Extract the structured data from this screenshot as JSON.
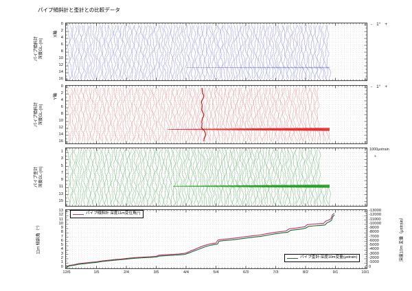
{
  "title": "パイプ傾斜計と歪計との比較データ",
  "x_axis": {
    "tick_labels": [
      "12/6",
      "1/5",
      "2/4",
      "3/5",
      "4/4",
      "5/4",
      "6/3",
      "7/3",
      "8/2",
      "9/1",
      "10/1"
    ]
  },
  "panel1": {
    "label_line1": "パイプ傾斜計",
    "label_line2": "深度GL-(m)",
    "axis_tag": "X軸",
    "y_tick_labels": [
      "0",
      "2",
      "4",
      "6",
      "8",
      "10",
      "12",
      "14",
      "16"
    ],
    "scale": {
      "minus": "-",
      "value": "1°",
      "plus": "+"
    }
  },
  "panel2": {
    "label_line1": "パイプ傾斜計",
    "label_line2": "深度GL-(m)",
    "axis_tag": "Y軸",
    "y_tick_labels": [
      "0",
      "2",
      "4",
      "6",
      "8",
      "10",
      "12",
      "14",
      "16"
    ],
    "scale": {
      "minus": "-",
      "value": "1°",
      "plus": "+"
    }
  },
  "panel3": {
    "label_line1": "パイプ歪計",
    "label_line2": "深度GL-(m)",
    "y_tick_labels": [
      "1",
      "3",
      "5",
      "7",
      "9",
      "11",
      "13",
      "15"
    ],
    "scale_label": "1000μstrain",
    "scale_sub": "+"
  },
  "panel4": {
    "left_label": "11m 傾斜角（°）",
    "right_label": "深度10m 変量（μstrain）",
    "left_tick_labels": [
      "13",
      "12",
      "11",
      "10",
      "9",
      "8",
      "7",
      "6",
      "5",
      "4",
      "3",
      "2",
      "1",
      "0"
    ],
    "right_tick_labels": [
      "-13000",
      "-12000",
      "-11000",
      "-10000",
      "-9000",
      "-8000",
      "-7000",
      "-6000",
      "-5000",
      "-4000",
      "-3000",
      "-2000",
      "-1000",
      "0"
    ],
    "legend_tilt": "パイプ傾斜計 深度11m変位角(°)",
    "legend_strain": "パイプ歪計:深度10m変量(μstrain)"
  },
  "colors": {
    "trace_blue": "#7b80d8",
    "band_blue": "#4348b8",
    "trace_red": "#e08282",
    "band_red": "#e00000",
    "trace_green": "#55a85c",
    "band_green": "#009200",
    "line_magenta": "#c22b6e",
    "line_green": "#156b2a",
    "grid": "#c6c6c6",
    "frame": "#444444",
    "tick": "#333333"
  },
  "chart_data": [
    {
      "type": "profile-fan",
      "name": "pipe-inclinometer-x-axis",
      "y_axis_label": "パイプ傾斜計 深度GL-(m) X軸",
      "depth_range_m": [
        0,
        16
      ],
      "depth_tick_labels": [
        "0",
        "2",
        "4",
        "6",
        "8",
        "10",
        "12",
        "14",
        "16"
      ],
      "scale_annotation": "- 1° +",
      "profile_color": "blue",
      "n_profiles": 115,
      "date_span": [
        "12/6",
        "8/25"
      ],
      "displacement_concentration_depth_m": 12.5
    },
    {
      "type": "profile-fan",
      "name": "pipe-inclinometer-y-axis",
      "y_axis_label": "パイプ傾斜計 深度GL-(m) Y軸",
      "depth_range_m": [
        0,
        16
      ],
      "depth_tick_labels": [
        "0",
        "2",
        "4",
        "6",
        "8",
        "10",
        "12",
        "14",
        "16"
      ],
      "scale_annotation": "- 1° +",
      "profile_color": "red",
      "n_profiles": 115,
      "date_span": [
        "12/6",
        "8/25"
      ],
      "displacement_concentration_depth_m": 12.3,
      "highlighted_profile_position": 0.52
    },
    {
      "type": "profile-fan",
      "name": "pipe-strain-gauge",
      "y_axis_label": "パイプ歪計 深度GL-(m)",
      "depth_range_m": [
        0,
        16
      ],
      "depth_tick_labels": [
        "1",
        "3",
        "5",
        "7",
        "9",
        "11",
        "13",
        "15"
      ],
      "scale_annotation": "1000μstrain",
      "profile_color": "green",
      "n_profiles": 115,
      "date_span": [
        "12/6",
        "8/25"
      ],
      "displacement_concentration_depth_m": 10.6
    },
    {
      "type": "line",
      "name": "time-series-comparison",
      "x_tick_labels": [
        "12/6",
        "1/5",
        "2/4",
        "3/5",
        "4/4",
        "5/4",
        "6/3",
        "7/3",
        "8/2",
        "9/1",
        "10/1"
      ],
      "ylabel_left": "11m 傾斜角（°）",
      "ylabel_right": "深度10m 変量（μstrain）",
      "ylim_left": [
        0,
        13
      ],
      "ylim_right": [
        0,
        -13000
      ],
      "grid": true,
      "series": [
        {
          "name": "パイプ傾斜計 深度11m変位角(°)",
          "axis": "left",
          "color": "#c22b6e",
          "points": [
            [
              0,
              0.2
            ],
            [
              0.1,
              0.45
            ],
            [
              0.25,
              0.6
            ],
            [
              0.4,
              0.85
            ],
            [
              0.6,
              1.0
            ],
            [
              0.8,
              1.15
            ],
            [
              1.0,
              1.3
            ],
            [
              1.2,
              1.5
            ],
            [
              1.4,
              1.65
            ],
            [
              1.6,
              1.8
            ],
            [
              1.8,
              1.9
            ],
            [
              2.0,
              2.05
            ],
            [
              2.2,
              2.2
            ],
            [
              2.4,
              2.3
            ],
            [
              2.6,
              2.4
            ],
            [
              2.8,
              2.45
            ],
            [
              3.0,
              2.55
            ],
            [
              3.08,
              2.8
            ],
            [
              3.25,
              2.9
            ],
            [
              3.5,
              3.0
            ],
            [
              3.75,
              3.1
            ],
            [
              3.95,
              3.25
            ],
            [
              4.05,
              3.5
            ],
            [
              4.15,
              3.8
            ],
            [
              4.3,
              4.2
            ],
            [
              4.45,
              4.65
            ],
            [
              4.6,
              5.05
            ],
            [
              4.75,
              5.35
            ],
            [
              4.9,
              5.55
            ],
            [
              5.0,
              5.65
            ],
            [
              5.07,
              6.35
            ],
            [
              5.2,
              6.5
            ],
            [
              5.45,
              6.65
            ],
            [
              5.7,
              6.85
            ],
            [
              5.95,
              7.1
            ],
            [
              6.2,
              7.3
            ],
            [
              6.45,
              7.5
            ],
            [
              6.7,
              7.8
            ],
            [
              6.95,
              8.1
            ],
            [
              7.15,
              8.3
            ],
            [
              7.35,
              8.45
            ],
            [
              7.45,
              8.95
            ],
            [
              7.65,
              9.1
            ],
            [
              7.85,
              9.3
            ],
            [
              7.98,
              9.45
            ],
            [
              8.05,
              9.9
            ],
            [
              8.25,
              10.05
            ],
            [
              8.45,
              10.15
            ],
            [
              8.6,
              10.2
            ],
            [
              8.68,
              10.75
            ],
            [
              8.78,
              11.0
            ],
            [
              8.85,
              11.3
            ],
            [
              8.9,
              12.25
            ],
            [
              8.96,
              12.55
            ]
          ]
        },
        {
          "name": "パイプ歪計:深度10m変量(μstrain)",
          "axis": "right",
          "color": "#156b2a",
          "points": [
            [
              0,
              -100
            ],
            [
              0.1,
              -350
            ],
            [
              0.25,
              -500
            ],
            [
              0.4,
              -700
            ],
            [
              0.6,
              -850
            ],
            [
              0.8,
              -1000
            ],
            [
              1.0,
              -1150
            ],
            [
              1.2,
              -1350
            ],
            [
              1.4,
              -1500
            ],
            [
              1.6,
              -1650
            ],
            [
              1.8,
              -1750
            ],
            [
              2.0,
              -1900
            ],
            [
              2.2,
              -2050
            ],
            [
              2.4,
              -2150
            ],
            [
              2.6,
              -2250
            ],
            [
              2.8,
              -2300
            ],
            [
              3.0,
              -2400
            ],
            [
              3.1,
              -2600
            ],
            [
              3.3,
              -2700
            ],
            [
              3.55,
              -2800
            ],
            [
              3.8,
              -2900
            ],
            [
              3.98,
              -3050
            ],
            [
              4.08,
              -3300
            ],
            [
              4.2,
              -3600
            ],
            [
              4.35,
              -4000
            ],
            [
              4.5,
              -4400
            ],
            [
              4.65,
              -4800
            ],
            [
              4.8,
              -5100
            ],
            [
              4.95,
              -5300
            ],
            [
              5.05,
              -5400
            ],
            [
              5.1,
              -6050
            ],
            [
              5.25,
              -6200
            ],
            [
              5.5,
              -6350
            ],
            [
              5.75,
              -6550
            ],
            [
              6.0,
              -6800
            ],
            [
              6.25,
              -7000
            ],
            [
              6.5,
              -7200
            ],
            [
              6.75,
              -7500
            ],
            [
              7.0,
              -7800
            ],
            [
              7.2,
              -8000
            ],
            [
              7.4,
              -8150
            ],
            [
              7.5,
              -8600
            ],
            [
              7.7,
              -8750
            ],
            [
              7.9,
              -8950
            ],
            [
              8.0,
              -9100
            ],
            [
              8.1,
              -9500
            ],
            [
              8.3,
              -9650
            ],
            [
              8.5,
              -9750
            ],
            [
              8.65,
              -9850
            ],
            [
              8.72,
              -10350
            ],
            [
              8.8,
              -10600
            ],
            [
              8.87,
              -10950
            ],
            [
              8.92,
              -11850
            ],
            [
              8.97,
              -12200
            ]
          ]
        }
      ]
    }
  ]
}
